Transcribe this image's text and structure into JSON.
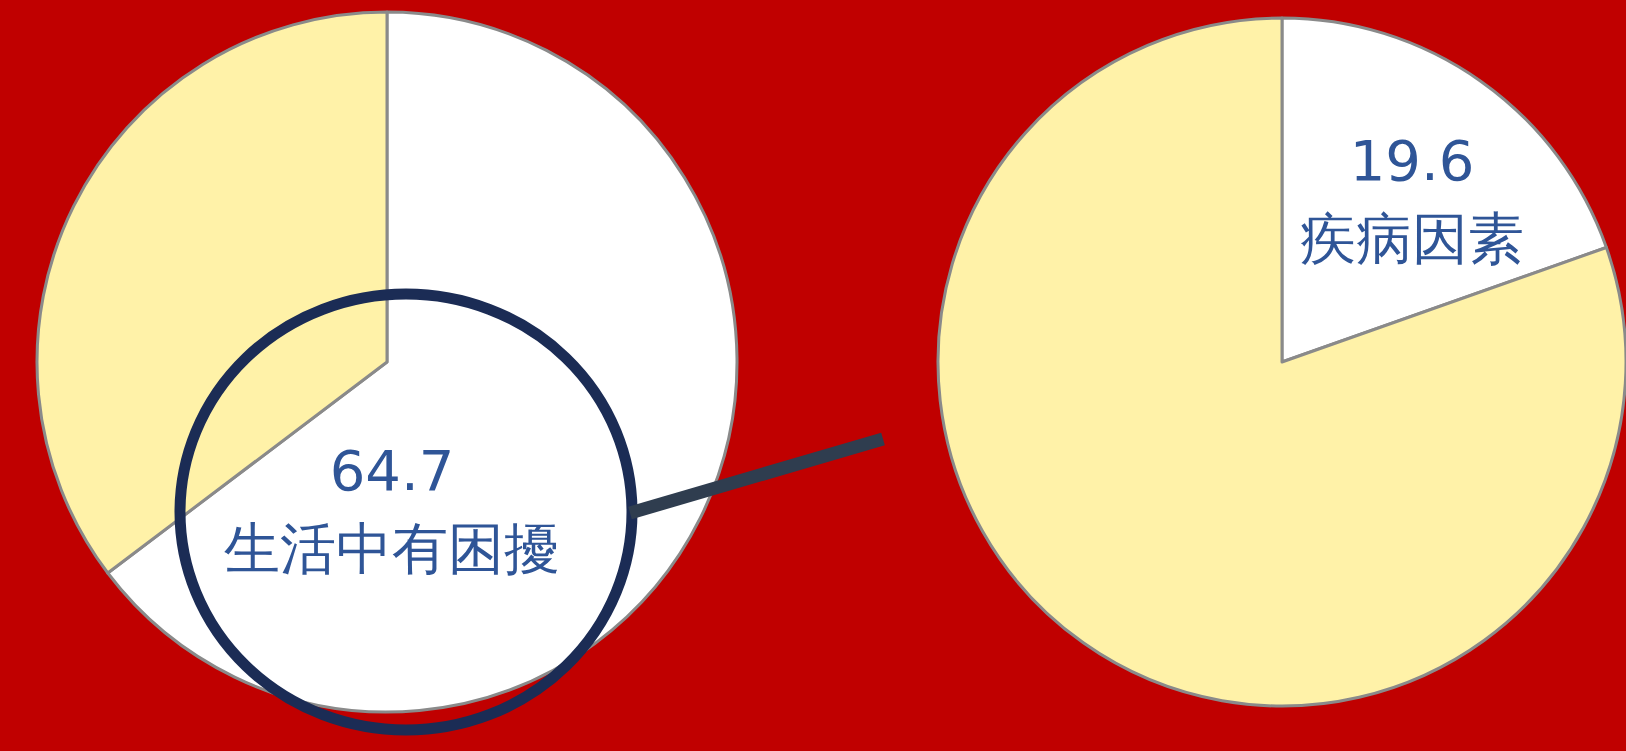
{
  "chart_data": [
    {
      "type": "pie",
      "categories": [
        "生活中有困擾",
        null
      ],
      "values": [
        64.7,
        35.3
      ],
      "colors": [
        "#ffffff",
        "#fff2a8"
      ],
      "value_labels": [
        "64.7",
        null
      ]
    },
    {
      "type": "pie",
      "categories": [
        "疾病因素",
        null
      ],
      "values": [
        19.6,
        80.4
      ],
      "colors": [
        "#ffffff",
        "#fff2a8"
      ],
      "value_labels": [
        "19.6",
        null
      ]
    }
  ]
}
